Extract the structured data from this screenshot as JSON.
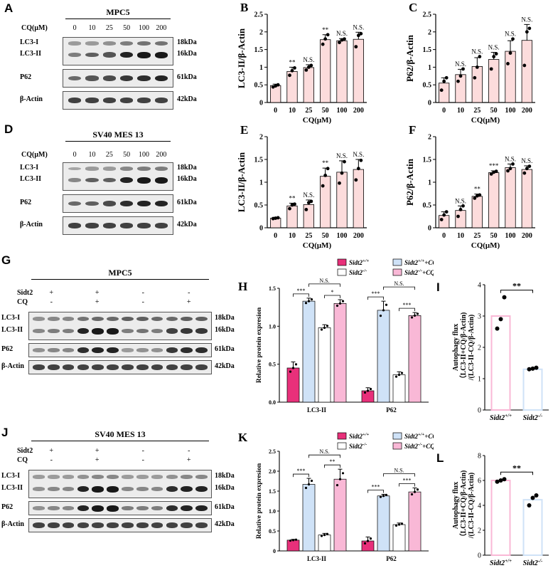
{
  "panels": {
    "A": {
      "letter": "A",
      "title": "MPC5",
      "treatment_label": "CQ(μM)",
      "columns": [
        "0",
        "10",
        "25",
        "50",
        "100",
        "200"
      ],
      "strips": [
        {
          "rows": [
            {
              "name": "LC3-I",
              "kda": "18kDa",
              "level": [
                0.35,
                0.35,
                0.4,
                0.5,
                0.55,
                0.55
              ]
            },
            {
              "name": "LC3-II",
              "kda": "16kDa",
              "level": [
                0.5,
                0.65,
                0.7,
                0.95,
                1,
                1
              ]
            }
          ]
        },
        {
          "rows": [
            {
              "name": "P62",
              "kda": "61kDa",
              "level": [
                0.6,
                0.7,
                0.75,
                0.85,
                0.9,
                0.95
              ]
            }
          ]
        },
        {
          "rows": [
            {
              "name": "β-Actin",
              "kda": "42kDa",
              "level": [
                0.8,
                0.8,
                0.8,
                0.8,
                0.8,
                0.8
              ]
            }
          ]
        }
      ]
    },
    "D": {
      "letter": "D",
      "title": "SV40 MES 13",
      "treatment_label": "CQ(μM)",
      "columns": [
        "0",
        "10",
        "25",
        "50",
        "100",
        "200"
      ],
      "strips": [
        {
          "rows": [
            {
              "name": "LC3-I",
              "kda": "18kDa",
              "level": [
                0.3,
                0.35,
                0.35,
                0.45,
                0.5,
                0.5
              ]
            },
            {
              "name": "LC3-II",
              "kda": "16kDa",
              "level": [
                0.45,
                0.65,
                0.65,
                0.95,
                1,
                1
              ]
            }
          ]
        },
        {
          "rows": [
            {
              "name": "P62",
              "kda": "61kDa",
              "level": [
                0.6,
                0.65,
                0.75,
                0.9,
                0.95,
                0.95
              ]
            }
          ]
        },
        {
          "rows": [
            {
              "name": "β-Actin",
              "kda": "42kDa",
              "level": [
                0.8,
                0.8,
                0.8,
                0.8,
                0.8,
                0.8
              ]
            }
          ]
        }
      ]
    },
    "G": {
      "letter": "G",
      "title": "MPC5",
      "row_labels": [
        "Sidt2",
        "CQ"
      ],
      "group_signs": [
        [
          "+",
          "+",
          "-",
          "-"
        ],
        [
          "-",
          "+",
          "-",
          "+"
        ]
      ],
      "strips": [
        {
          "rows": [
            {
              "name": "LC3-I",
              "kda": "18kDa",
              "level": [
                0.4,
                0.45,
                0.45,
                0.55,
                0.6,
                0.6,
                0.65,
                0.65,
                0.6,
                0.6,
                0.65,
                0.65
              ]
            },
            {
              "name": "LC3-II",
              "kda": "16kDa",
              "level": [
                0.45,
                0.5,
                0.5,
                0.95,
                1,
                1,
                0.5,
                0.55,
                0.5,
                0.8,
                0.85,
                0.85
              ]
            }
          ]
        },
        {
          "rows": [
            {
              "name": "P62",
              "kda": "61kDa",
              "level": [
                0.4,
                0.45,
                0.45,
                0.9,
                0.95,
                0.95,
                0.35,
                0.4,
                0.4,
                0.85,
                0.9,
                0.9
              ]
            }
          ]
        },
        {
          "rows": [
            {
              "name": "β-Actin",
              "kda": "42kDa",
              "level": [
                0.8,
                0.8,
                0.8,
                0.8,
                0.8,
                0.8,
                0.8,
                0.8,
                0.8,
                0.8,
                0.8,
                0.8
              ]
            }
          ]
        }
      ]
    },
    "J": {
      "letter": "J",
      "title": "SV40 MES 13",
      "row_labels": [
        "Sidt2",
        "CQ"
      ],
      "group_signs": [
        [
          "+",
          "+",
          "-",
          "-"
        ],
        [
          "-",
          "+",
          "-",
          "+"
        ]
      ],
      "strips": [
        {
          "rows": [
            {
              "name": "LC3-I",
              "kda": "18kDa",
              "level": [
                0.35,
                0.35,
                0.35,
                0.4,
                0.45,
                0.45,
                0.35,
                0.35,
                0.35,
                0.4,
                0.45,
                0.45
              ]
            },
            {
              "name": "LC3-II",
              "kda": "16kDa",
              "level": [
                0.4,
                0.45,
                0.45,
                0.95,
                1,
                1,
                0.45,
                0.45,
                0.45,
                0.9,
                0.95,
                0.95
              ]
            }
          ]
        },
        {
          "rows": [
            {
              "name": "P62",
              "kda": "61kDa",
              "level": [
                0.4,
                0.45,
                0.45,
                0.95,
                1,
                1,
                0.5,
                0.5,
                0.5,
                0.9,
                0.95,
                0.95
              ]
            }
          ]
        },
        {
          "rows": [
            {
              "name": "β-Actin",
              "kda": "42kDa",
              "level": [
                0.8,
                0.8,
                0.8,
                0.8,
                0.8,
                0.8,
                0.8,
                0.8,
                0.8,
                0.8,
                0.8,
                0.8
              ]
            }
          ]
        }
      ]
    },
    "I": {
      "letter": "I"
    },
    "L": {
      "letter": "L"
    }
  },
  "colors": {
    "bar_light_pink": "#fcdcdc",
    "magenta": "#e8307a",
    "light_blue": "#cfe2f7",
    "pink": "#f9b8d6",
    "white": "#ffffff"
  },
  "chart_data": [
    {
      "id": "B",
      "letter": "B",
      "type": "bar",
      "categories": [
        "0",
        "10",
        "25",
        "50",
        "100",
        "200"
      ],
      "values": [
        0.48,
        0.88,
        0.99,
        1.78,
        1.75,
        1.79
      ],
      "error": [
        0.04,
        0.12,
        0.08,
        0.14,
        0.06,
        0.2
      ],
      "points": [
        [
          0.44,
          0.47,
          0.5
        ],
        [
          0.77,
          0.9,
          0.98
        ],
        [
          0.92,
          1.0,
          1.05
        ],
        [
          1.65,
          1.8,
          1.92
        ],
        [
          1.7,
          1.77,
          1.8
        ],
        [
          1.58,
          1.9,
          1.95
        ]
      ],
      "annotations": [
        "",
        "**",
        "N.S.",
        "**",
        "N.S.",
        "N.S."
      ],
      "ylabel": "LC3-II/β-Actin",
      "xlabel": "CQ(μM)",
      "ylim": [
        0,
        2.5
      ],
      "yticks": [
        0,
        0.5,
        1,
        1.5,
        2,
        2.5
      ],
      "color": "#fcdcdc"
    },
    {
      "id": "C",
      "letter": "C",
      "type": "bar",
      "categories": [
        "0",
        "10",
        "25",
        "50",
        "100",
        "200"
      ],
      "values": [
        0.55,
        0.79,
        1.02,
        1.22,
        1.45,
        1.76
      ],
      "error": [
        0.15,
        0.15,
        0.25,
        0.2,
        0.3,
        0.45
      ],
      "points": [
        [
          0.35,
          0.6,
          0.7
        ],
        [
          0.6,
          0.75,
          0.95
        ],
        [
          0.7,
          1.0,
          1.3
        ],
        [
          0.95,
          1.3,
          1.38
        ],
        [
          1.1,
          1.4,
          1.8
        ],
        [
          1.05,
          2.0,
          2.1
        ]
      ],
      "annotations": [
        "",
        "N.S.",
        "N.S.",
        "N.S.",
        "N.S.",
        "N.S."
      ],
      "ylabel": "P62/β-Actin",
      "xlabel": "CQ(μM)",
      "ylim": [
        0,
        2.5
      ],
      "yticks": [
        0,
        0.5,
        1,
        1.5,
        2,
        2.5
      ],
      "color": "#fcdcdc"
    },
    {
      "id": "E",
      "letter": "E",
      "type": "bar",
      "categories": [
        "0",
        "10",
        "25",
        "50",
        "100",
        "200"
      ],
      "values": [
        0.21,
        0.48,
        0.51,
        1.13,
        1.22,
        1.28
      ],
      "error": [
        0.02,
        0.06,
        0.1,
        0.18,
        0.25,
        0.22
      ],
      "points": [
        [
          0.2,
          0.21,
          0.22
        ],
        [
          0.42,
          0.5,
          0.52
        ],
        [
          0.4,
          0.55,
          0.58
        ],
        [
          0.92,
          1.15,
          1.3
        ],
        [
          0.98,
          1.2,
          1.45
        ],
        [
          1.05,
          1.3,
          1.48
        ]
      ],
      "annotations": [
        "",
        "**",
        "N.S.",
        "**",
        "N.S.",
        "N.S."
      ],
      "ylabel": "LC3-II/β-Actin",
      "xlabel": "CQ(μM)",
      "ylim": [
        0,
        2.0
      ],
      "yticks": [
        0,
        0.5,
        1,
        1.5,
        2
      ],
      "color": "#fcdcdc"
    },
    {
      "id": "F",
      "letter": "F",
      "type": "bar",
      "categories": [
        "0",
        "10",
        "25",
        "50",
        "100",
        "200"
      ],
      "values": [
        0.27,
        0.38,
        0.69,
        1.21,
        1.32,
        1.28
      ],
      "error": [
        0.08,
        0.1,
        0.05,
        0.04,
        0.08,
        0.08
      ],
      "points": [
        [
          0.18,
          0.28,
          0.35
        ],
        [
          0.25,
          0.4,
          0.48
        ],
        [
          0.65,
          0.7,
          0.72
        ],
        [
          1.18,
          1.22,
          1.24
        ],
        [
          1.25,
          1.3,
          1.4
        ],
        [
          1.2,
          1.3,
          1.35
        ]
      ],
      "annotations": [
        "",
        "N.S.",
        "**",
        "***",
        "N.S.",
        "N.S."
      ],
      "ylabel": "P62/β-Actin",
      "xlabel": "CQ(μM)",
      "ylim": [
        0,
        2.0
      ],
      "yticks": [
        0,
        0.5,
        1,
        1.5,
        2
      ],
      "color": "#fcdcdc"
    },
    {
      "id": "H",
      "letter": "H",
      "type": "bar",
      "groups": [
        "LC3-II",
        "P62"
      ],
      "series": [
        {
          "name": "Sidt2+/+",
          "sup": "+/+",
          "suffix": "",
          "color": "#e8307a",
          "values": [
            0.45,
            0.15
          ],
          "error": [
            0.08,
            0.04
          ]
        },
        {
          "name": "Sidt2+/++CQ",
          "sup": "+/+",
          "suffix": "+CQ",
          "color": "#cfe2f7",
          "values": [
            1.33,
            1.21
          ],
          "error": [
            0.04,
            0.12
          ]
        },
        {
          "name": "Sidt2-/-",
          "sup": "-/-",
          "suffix": "",
          "color": "#ffffff",
          "values": [
            0.98,
            0.36
          ],
          "error": [
            0.04,
            0.04
          ]
        },
        {
          "name": "Sidt2-/-+CQ",
          "sup": "-/-",
          "suffix": "+CQ",
          "color": "#f9b8d6",
          "values": [
            1.3,
            1.14
          ],
          "error": [
            0.05,
            0.04
          ]
        }
      ],
      "brackets": [
        {
          "group": 0,
          "from": 0,
          "to": 1,
          "label": "***",
          "level": 0
        },
        {
          "group": 0,
          "from": 2,
          "to": 3,
          "label": "*",
          "level": 0
        },
        {
          "group": 0,
          "from": 1,
          "to": 3,
          "label": "N.S.",
          "level": 1
        },
        {
          "group": 1,
          "from": 0,
          "to": 1,
          "label": "***",
          "level": 0
        },
        {
          "group": 1,
          "from": 2,
          "to": 3,
          "label": "***",
          "level": 0
        },
        {
          "group": 1,
          "from": 1,
          "to": 3,
          "label": "N.S.",
          "level": 1
        }
      ],
      "ylabel": "Relative protein expresion",
      "ylim": [
        0,
        1.5
      ],
      "yticks": [
        0,
        0.5,
        1.0,
        1.5
      ],
      "yticklabels": [
        "0.0",
        "0.5",
        "1.0",
        "1.5"
      ]
    },
    {
      "id": "K",
      "letter": "K",
      "type": "bar",
      "groups": [
        "LC3-II",
        "P62"
      ],
      "series": [
        {
          "name": "Sidt2+/+",
          "sup": "+/+",
          "suffix": "",
          "color": "#e8307a",
          "values": [
            0.27,
            0.25
          ],
          "error": [
            0.02,
            0.1
          ]
        },
        {
          "name": "Sidt2+/++CQ",
          "sup": "+/+",
          "suffix": "+CQ",
          "color": "#cfe2f7",
          "values": [
            1.67,
            1.38
          ],
          "error": [
            0.15,
            0.04
          ]
        },
        {
          "name": "Sidt2-/-",
          "sup": "-/-",
          "suffix": "",
          "color": "#ffffff",
          "values": [
            0.4,
            0.66
          ],
          "error": [
            0.04,
            0.04
          ]
        },
        {
          "name": "Sidt2-/-+CQ",
          "sup": "-/-",
          "suffix": "+CQ",
          "color": "#f9b8d6",
          "values": [
            1.8,
            1.48
          ],
          "error": [
            0.25,
            0.1
          ]
        }
      ],
      "brackets": [
        {
          "group": 0,
          "from": 0,
          "to": 1,
          "label": "***",
          "level": 0
        },
        {
          "group": 0,
          "from": 2,
          "to": 3,
          "label": "**",
          "level": 0
        },
        {
          "group": 0,
          "from": 1,
          "to": 3,
          "label": "N.S.",
          "level": 1
        },
        {
          "group": 1,
          "from": 0,
          "to": 1,
          "label": "***",
          "level": 0
        },
        {
          "group": 1,
          "from": 2,
          "to": 3,
          "label": "***",
          "level": 0
        },
        {
          "group": 1,
          "from": 1,
          "to": 3,
          "label": "N.S.",
          "level": 1
        }
      ],
      "ylabel": "Relative protein expresion",
      "ylim": [
        0,
        2.5
      ],
      "yticks": [
        0,
        0.5,
        1.0,
        1.5,
        2.0,
        2.5
      ],
      "yticklabels": [
        "0",
        "0.5",
        "1.0",
        "1.5",
        "2.0",
        "2.5"
      ]
    },
    {
      "id": "Ichart",
      "type": "bar",
      "categories": [
        "Sidt2+/+",
        "Sidt2-/-"
      ],
      "sups": [
        "+/+",
        "-/-"
      ],
      "values": [
        3.0,
        1.3
      ],
      "points": [
        [
          2.6,
          2.9,
          3.6
        ],
        [
          1.3,
          1.32,
          1.35
        ]
      ],
      "colors": [
        "#f9b8d6",
        "#cfe2f7"
      ],
      "annotation": "**",
      "ylabel_lines": [
        "Autophagy flux",
        "（LC3-II+CQ/β-Actin)",
        "/(LC3-II-CQ/β-Actin)"
      ],
      "ylim": [
        0,
        4
      ],
      "yticks": [
        0,
        1,
        2,
        3,
        4
      ]
    },
    {
      "id": "Lchart",
      "type": "bar",
      "categories": [
        "Sidt2+/+",
        "Sidt2-/-"
      ],
      "sups": [
        "+/+",
        "-/-"
      ],
      "values": [
        6.0,
        4.45
      ],
      "points": [
        [
          5.9,
          6.0,
          6.1
        ],
        [
          4.0,
          4.6,
          4.8
        ]
      ],
      "colors": [
        "#f9b8d6",
        "#cfe2f7"
      ],
      "annotation": "**",
      "ylabel_lines": [
        "Autophagy flux",
        "（LC3-II+CQ/β-Actin)",
        "/(LC3-II-CQ/β-Actin)"
      ],
      "ylim": [
        0,
        8
      ],
      "yticks": [
        0,
        2,
        4,
        6,
        8
      ]
    }
  ]
}
